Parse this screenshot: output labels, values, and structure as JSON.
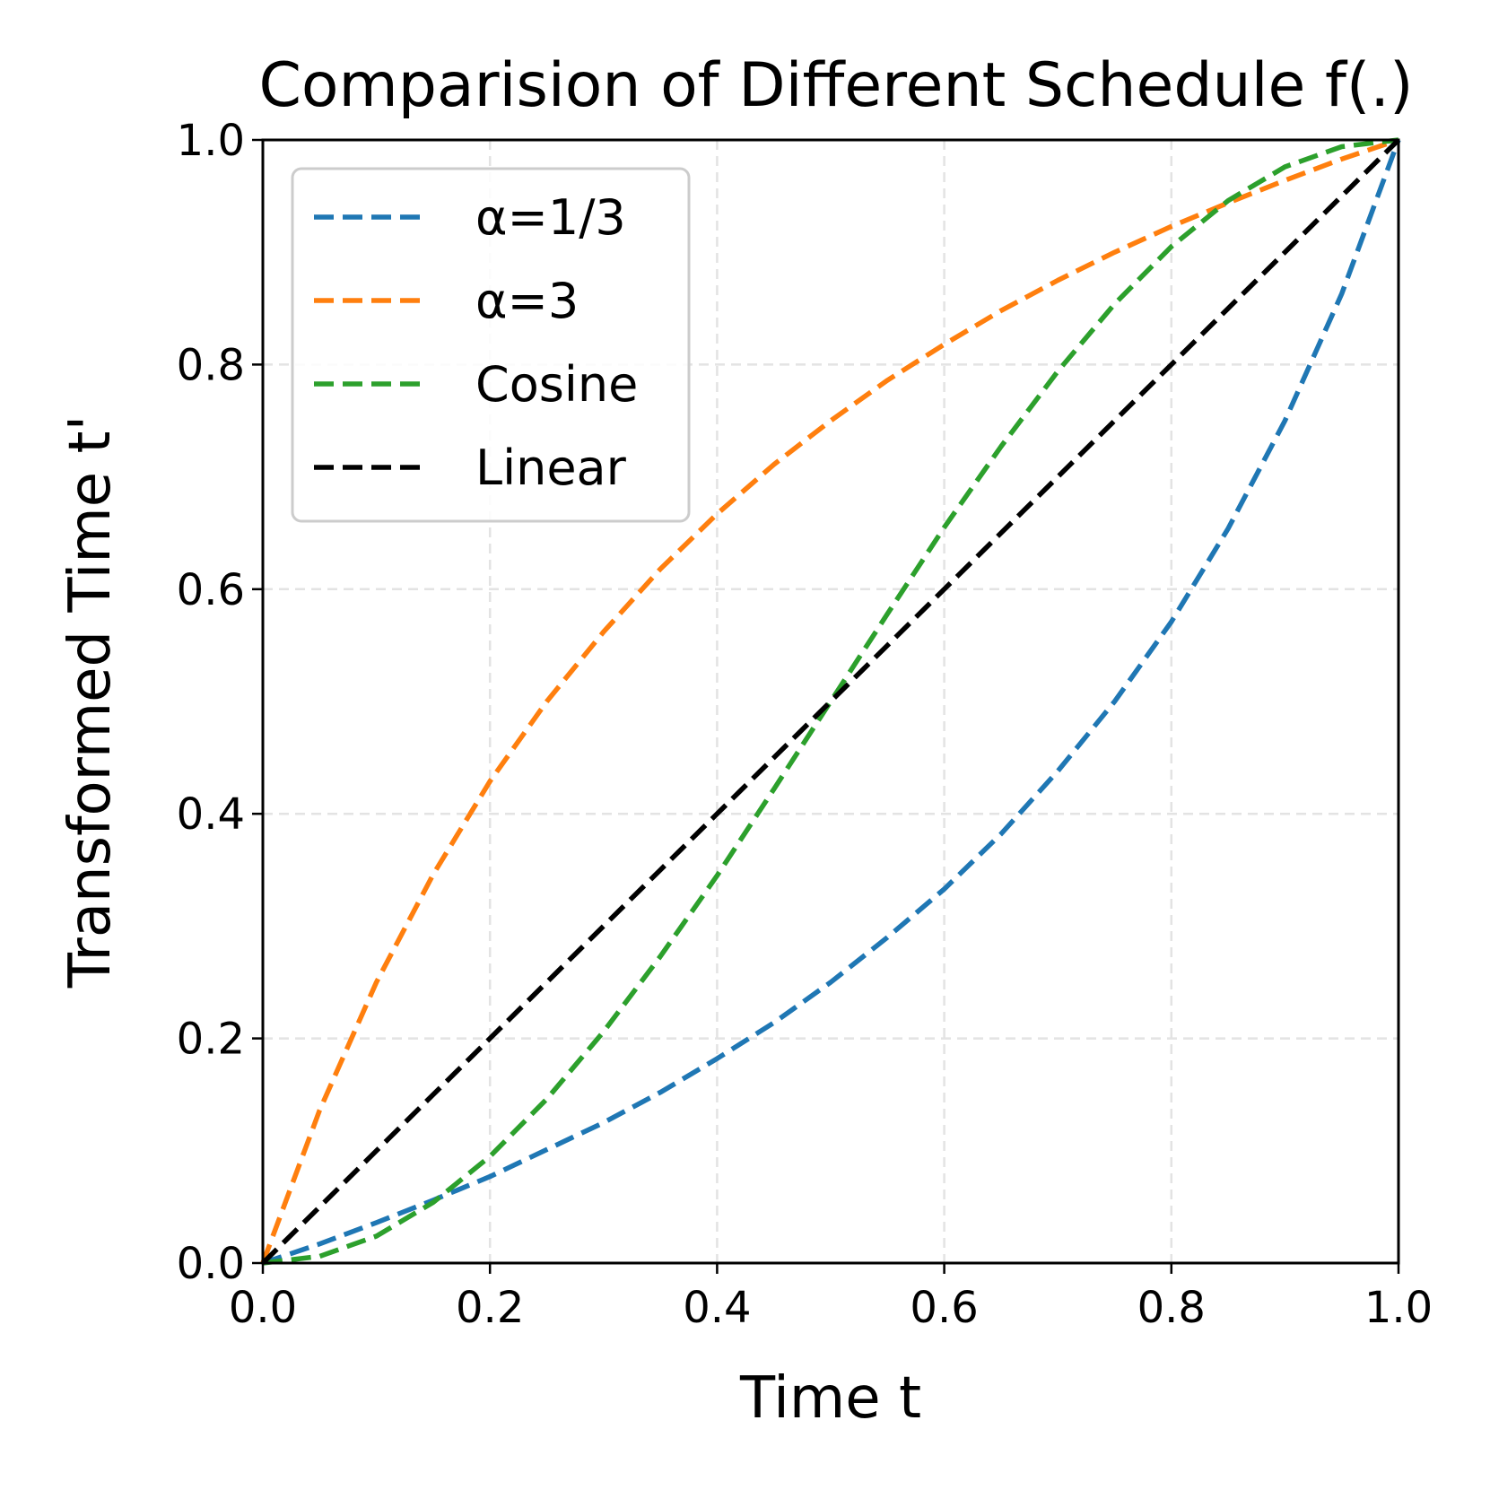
{
  "chart_data": {
    "type": "line",
    "title": "Comparision of Different Schedule f(.)",
    "xlabel": "Time t",
    "ylabel": "Transformed Time t'",
    "xlim": [
      0.0,
      1.0
    ],
    "ylim": [
      0.0,
      1.0
    ],
    "grid": true,
    "legend_position": "upper-left",
    "xticks": [
      "0.0",
      "0.2",
      "0.4",
      "0.6",
      "0.8",
      "1.0"
    ],
    "yticks": [
      "0.0",
      "0.2",
      "0.4",
      "0.6",
      "0.8",
      "1.0"
    ],
    "xtick_values": [
      0.0,
      0.2,
      0.4,
      0.6,
      0.8,
      1.0
    ],
    "ytick_values": [
      0.0,
      0.2,
      0.4,
      0.6,
      0.8,
      1.0
    ],
    "x": [
      0.0,
      0.05,
      0.1,
      0.15,
      0.2,
      0.25,
      0.3,
      0.35,
      0.4,
      0.45,
      0.5,
      0.55,
      0.6,
      0.65,
      0.7,
      0.75,
      0.8,
      0.85,
      0.9,
      0.95,
      1.0
    ],
    "series": [
      {
        "name": "α=1/3",
        "color": "#1f77b4",
        "values": [
          0.0,
          0.017,
          0.036,
          0.056,
          0.077,
          0.101,
          0.125,
          0.152,
          0.182,
          0.214,
          0.25,
          0.29,
          0.333,
          0.382,
          0.438,
          0.5,
          0.571,
          0.654,
          0.75,
          0.863,
          1.0
        ]
      },
      {
        "name": "α=3",
        "color": "#ff7f0e",
        "values": [
          0.0,
          0.136,
          0.25,
          0.346,
          0.429,
          0.5,
          0.562,
          0.618,
          0.667,
          0.711,
          0.75,
          0.786,
          0.818,
          0.848,
          0.875,
          0.9,
          0.923,
          0.944,
          0.964,
          0.983,
          1.0
        ]
      },
      {
        "name": "Cosine",
        "color": "#2ca02c",
        "values": [
          0.0,
          0.006,
          0.024,
          0.054,
          0.095,
          0.146,
          0.206,
          0.273,
          0.345,
          0.422,
          0.5,
          0.578,
          0.655,
          0.727,
          0.794,
          0.854,
          0.905,
          0.946,
          0.976,
          0.994,
          1.0
        ]
      },
      {
        "name": "Linear",
        "color": "#000000",
        "values": [
          0.0,
          0.05,
          0.1,
          0.15,
          0.2,
          0.25,
          0.3,
          0.35,
          0.4,
          0.45,
          0.5,
          0.55,
          0.6,
          0.65,
          0.7,
          0.75,
          0.8,
          0.85,
          0.9,
          0.95,
          1.0
        ]
      }
    ]
  }
}
